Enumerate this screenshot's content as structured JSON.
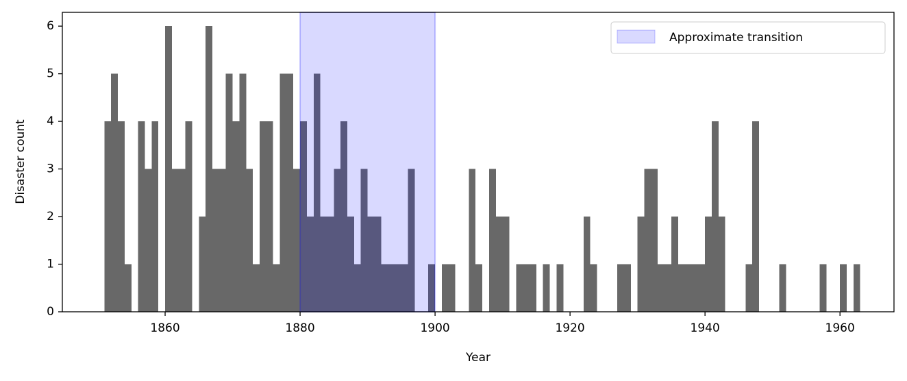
{
  "chart_data": {
    "type": "histogram",
    "x_label": "Year",
    "y_label": "Disaster count",
    "bins": [
      1851,
      1852,
      1853,
      1854,
      1855,
      1856,
      1857,
      1858,
      1859,
      1860,
      1861,
      1862,
      1863,
      1864,
      1865,
      1866,
      1867,
      1868,
      1869,
      1870,
      1871,
      1872,
      1873,
      1874,
      1875,
      1876,
      1877,
      1878,
      1879,
      1880,
      1881,
      1882,
      1883,
      1884,
      1885,
      1886,
      1887,
      1888,
      1889,
      1890,
      1891,
      1892,
      1893,
      1894,
      1895,
      1896,
      1897,
      1898,
      1899,
      1900,
      1901,
      1902,
      1903,
      1904,
      1905,
      1906,
      1907,
      1908,
      1909,
      1910,
      1911,
      1912,
      1913,
      1914,
      1915,
      1916,
      1917,
      1918,
      1919,
      1920,
      1921,
      1922,
      1923,
      1924,
      1925,
      1926,
      1927,
      1928,
      1929,
      1930,
      1931,
      1932,
      1933,
      1934,
      1935,
      1936,
      1937,
      1938,
      1939,
      1940,
      1941,
      1942,
      1943,
      1944,
      1945,
      1946,
      1947,
      1948,
      1949,
      1950,
      1951,
      1952,
      1953,
      1954,
      1955,
      1956,
      1957,
      1958,
      1959,
      1960,
      1961,
      1962,
      1963
    ],
    "values": [
      4,
      5,
      4,
      1,
      0,
      4,
      3,
      4,
      0,
      6,
      3,
      3,
      4,
      0,
      2,
      6,
      3,
      3,
      5,
      4,
      5,
      3,
      1,
      4,
      4,
      1,
      5,
      5,
      3,
      4,
      2,
      5,
      2,
      2,
      3,
      4,
      2,
      1,
      3,
      2,
      2,
      1,
      1,
      1,
      1,
      3,
      0,
      0,
      1,
      0,
      1,
      1,
      0,
      0,
      3,
      1,
      0,
      3,
      2,
      2,
      0,
      1,
      1,
      1,
      0,
      1,
      0,
      1,
      0,
      0,
      0,
      2,
      1,
      0,
      0,
      0,
      1,
      1,
      0,
      2,
      3,
      3,
      1,
      1,
      2,
      1,
      1,
      1,
      1,
      2,
      4,
      2,
      0,
      0,
      0,
      1,
      4,
      0,
      0,
      0,
      1,
      0,
      0,
      0,
      0,
      0,
      1,
      0,
      0,
      1,
      0,
      1
    ],
    "color": "#686868",
    "shaded_region": {
      "name": "Approximate transition",
      "x": [
        1880,
        1900
      ],
      "color": "#0000ff",
      "alpha": 0.15
    },
    "xlim": [
      1844.77,
      1968.0
    ],
    "xticks": [
      1860,
      1880,
      1900,
      1920,
      1940,
      1960
    ],
    "ylim": [
      0,
      6.29
    ],
    "yticks": [
      0,
      1,
      2,
      3,
      4,
      5,
      6
    ],
    "legend": "upper right"
  }
}
